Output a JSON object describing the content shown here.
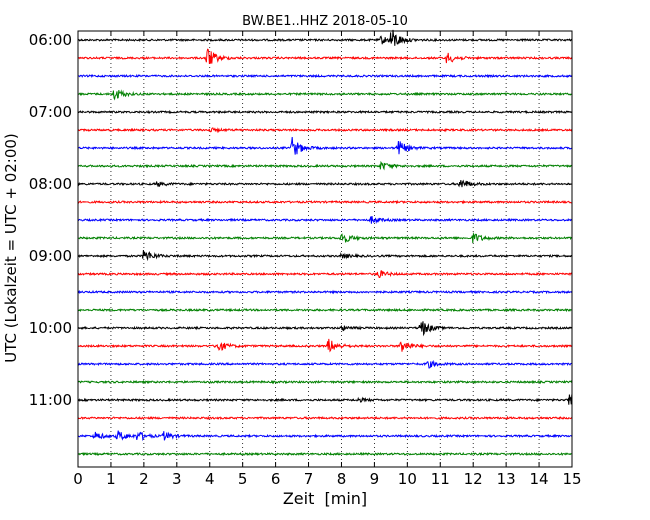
{
  "chart_data": {
    "type": "line",
    "title": "BW.BE1..HHZ 2018-05-10",
    "xlabel": "Zeit  [min]",
    "ylabel": "UTC (Lokalzeit = UTC + 02:00)",
    "xlim": [
      0,
      15
    ],
    "x_ticks": [
      "0",
      "1",
      "2",
      "3",
      "4",
      "5",
      "6",
      "7",
      "8",
      "9",
      "10",
      "11",
      "12",
      "13",
      "14",
      "15"
    ],
    "y_tick_labels": [
      "06:00",
      "07:00",
      "08:00",
      "09:00",
      "10:00",
      "11:00"
    ],
    "grid": "vertical dotted",
    "trace_colors": [
      "#000000",
      "#ff0000",
      "#0000ff",
      "#008000"
    ],
    "traces": [
      {
        "start": "06:00",
        "events": [
          [
            9.5,
            1.0
          ],
          [
            9.2,
            0.35
          ]
        ]
      },
      {
        "start": "06:15",
        "events": [
          [
            3.9,
            1.0
          ],
          [
            11.2,
            0.5
          ]
        ]
      },
      {
        "start": "06:30",
        "events": []
      },
      {
        "start": "06:45",
        "events": [
          [
            1.1,
            0.55
          ]
        ]
      },
      {
        "start": "07:00",
        "events": []
      },
      {
        "start": "07:15",
        "events": [
          [
            4.0,
            0.15
          ]
        ]
      },
      {
        "start": "07:30",
        "events": [
          [
            6.5,
            0.9
          ],
          [
            9.7,
            0.7
          ]
        ]
      },
      {
        "start": "07:45",
        "events": [
          [
            9.2,
            0.35
          ]
        ]
      },
      {
        "start": "08:00",
        "events": [
          [
            11.6,
            0.5
          ],
          [
            2.4,
            0.2
          ]
        ]
      },
      {
        "start": "08:15",
        "events": []
      },
      {
        "start": "08:30",
        "events": [
          [
            8.9,
            0.3
          ]
        ]
      },
      {
        "start": "08:45",
        "events": [
          [
            8.0,
            0.55
          ],
          [
            12.0,
            0.45
          ]
        ]
      },
      {
        "start": "09:00",
        "events": [
          [
            2.0,
            0.6
          ],
          [
            8.0,
            0.2
          ]
        ]
      },
      {
        "start": "09:15",
        "events": [
          [
            9.1,
            0.35
          ]
        ]
      },
      {
        "start": "09:30",
        "events": []
      },
      {
        "start": "09:45",
        "events": []
      },
      {
        "start": "10:00",
        "events": [
          [
            10.4,
            0.8
          ],
          [
            8.0,
            0.2
          ]
        ]
      },
      {
        "start": "10:15",
        "events": [
          [
            4.2,
            0.6
          ],
          [
            7.6,
            0.65
          ],
          [
            9.8,
            0.6
          ]
        ]
      },
      {
        "start": "10:30",
        "events": [
          [
            10.6,
            0.35
          ]
        ]
      },
      {
        "start": "10:45",
        "events": []
      },
      {
        "start": "11:00",
        "events": [
          [
            14.9,
            0.6
          ],
          [
            8.5,
            0.15
          ]
        ]
      },
      {
        "start": "11:15",
        "events": []
      },
      {
        "start": "11:30",
        "events": [
          [
            0.5,
            0.35
          ],
          [
            1.2,
            0.45
          ],
          [
            1.8,
            0.4
          ],
          [
            2.6,
            0.35
          ]
        ]
      },
      {
        "start": "11:45",
        "events": []
      }
    ]
  }
}
